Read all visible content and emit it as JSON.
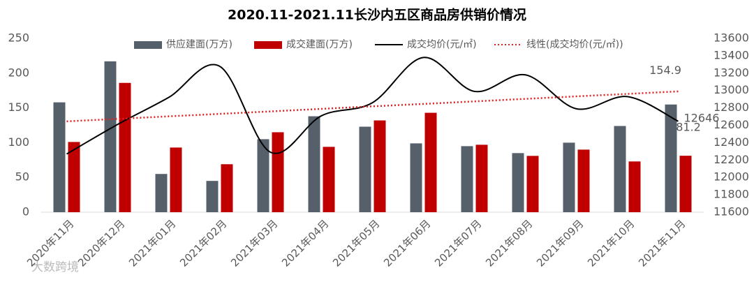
{
  "chart_data": {
    "type": "bar-line",
    "title": "2020.11-2021.11长沙内五区商品房供销价情况",
    "categories": [
      "2020年11月",
      "2020年12月",
      "2021年01月",
      "2021年02月",
      "2021年03月",
      "2021年04月",
      "2021年05月",
      "2021年06月",
      "2021年07月",
      "2021年08月",
      "2021年09月",
      "2021年10月",
      "2021年11月"
    ],
    "series": [
      {
        "name": "供应建面(万方)",
        "kind": "bar",
        "color": "#56606b",
        "label_last": true,
        "values": [
          158,
          217,
          55,
          45,
          105,
          138,
          123,
          99,
          95,
          85,
          100,
          124,
          154.9
        ]
      },
      {
        "name": "成交建面(万方)",
        "kind": "bar",
        "color": "#c00000",
        "label_last": true,
        "values": [
          101,
          186,
          93,
          69,
          115,
          94,
          132,
          143,
          97,
          81,
          90,
          73,
          81.2
        ]
      },
      {
        "name": "成交均价(元/㎡)",
        "kind": "smooth-line",
        "axis": "y2",
        "color": "#000000",
        "label_last": true,
        "values": [
          12270,
          12610,
          12920,
          13280,
          12290,
          12710,
          12860,
          13380,
          12990,
          13180,
          12790,
          12930,
          12646
        ]
      },
      {
        "name": "线性(成交均价(元/㎡))",
        "kind": "dotted-line",
        "axis": "y2",
        "color": "#e02020",
        "label_last": false,
        "values": [
          12645,
          12674,
          12703,
          12731,
          12760,
          12789,
          12818,
          12846,
          12875,
          12904,
          12933,
          12961,
          12990
        ]
      }
    ],
    "ylim": [
      0,
      250
    ],
    "yticks": [
      0,
      50,
      100,
      150,
      200,
      250
    ],
    "y2lim": [
      11600,
      13600
    ],
    "y2ticks": [
      11600,
      11800,
      12000,
      12200,
      12400,
      12600,
      12800,
      13000,
      13200,
      13400,
      13600
    ],
    "legend": "top",
    "grid": false,
    "watermark": "大数跨境"
  }
}
